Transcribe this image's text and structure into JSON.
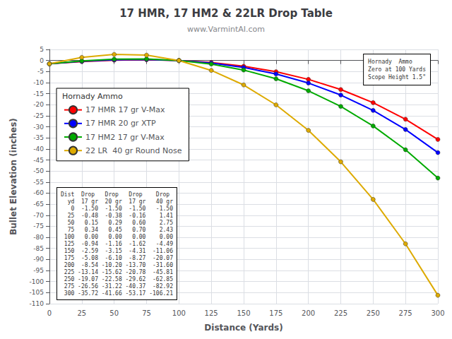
{
  "chart_data": {
    "type": "line",
    "title": "17 HMR, 17 HM2 & 22LR Drop Table",
    "subtitle": "www.VarmintAI.com",
    "xlabel": "Distance (Yards)",
    "ylabel": "Bullet Elevation (inches)",
    "x": [
      0,
      25,
      50,
      75,
      100,
      125,
      150,
      175,
      200,
      225,
      250,
      275,
      300
    ],
    "xlim": [
      0,
      300
    ],
    "ylim": [
      -110,
      5
    ],
    "xticks": [
      0,
      25,
      50,
      75,
      100,
      125,
      150,
      175,
      200,
      225,
      250,
      275,
      300
    ],
    "yticks": [
      5,
      0,
      -5,
      -10,
      -15,
      -20,
      -25,
      -30,
      -35,
      -40,
      -45,
      -50,
      -55,
      -60,
      -65,
      -70,
      -75,
      -80,
      -85,
      -90,
      -95,
      -100,
      -105,
      -110
    ],
    "grid": true,
    "marker": "circle",
    "legend_title": "Hornady Ammo",
    "series": [
      {
        "name": "17 HMR 17 gr V-Max",
        "color": "#ff0000",
        "values": [
          -1.5,
          -0.48,
          0.15,
          0.34,
          0.0,
          -0.94,
          -2.59,
          -5.08,
          -8.54,
          -13.14,
          -19.07,
          -26.56,
          -35.72
        ]
      },
      {
        "name": "17 HMR 20 gr XTP",
        "color": "#0000ff",
        "values": [
          -1.5,
          -0.38,
          0.29,
          0.45,
          0.0,
          -1.16,
          -3.15,
          -6.1,
          -10.2,
          -15.62,
          -22.58,
          -31.22,
          -41.66
        ]
      },
      {
        "name": "17 HM2 17 gr V-Max",
        "color": "#00aa00",
        "values": [
          -1.5,
          -0.16,
          0.6,
          0.7,
          0.0,
          -1.62,
          -4.31,
          -8.27,
          -13.7,
          -20.78,
          -29.62,
          -40.37,
          -53.17
        ]
      },
      {
        "name": "22 LR  40 gr Round Nose",
        "color": "#ddaa00",
        "values": [
          -1.5,
          1.41,
          2.75,
          2.43,
          0.0,
          -4.49,
          -11.06,
          -20.07,
          -31.6,
          -45.81,
          -62.85,
          -82.92,
          -106.21
        ]
      }
    ],
    "annotations": [
      "Hornady  Ammo\nZero at 100 Yards\nScope Height 1.5\"",
      "Dist  Drop   Drop   Drop    Drop\n  yd  17 gr  20 gr  17 gr   40 gr\n   0  -1.50  -1.50  -1.50   -1.50\n  25  -0.48  -0.38  -0.16    1.41\n  50   0.15   0.29   0.60    2.75\n  75   0.34   0.45   0.70    2.43\n 100   0.00   0.00   0.00    0.00\n 125  -0.94  -1.16  -1.62   -4.49\n 150  -2.59  -3.15  -4.31  -11.06\n 175  -5.08  -6.10  -8.27  -20.07\n 200  -8.54 -10.20 -13.70  -31.60\n 225 -13.14 -15.62 -20.78  -45.81\n 250 -19.07 -22.58 -29.62  -62.85\n 275 -26.56 -31.22 -40.37  -82.92\n 300 -35.72 -41.66 -53.17 -106.21"
    ]
  }
}
